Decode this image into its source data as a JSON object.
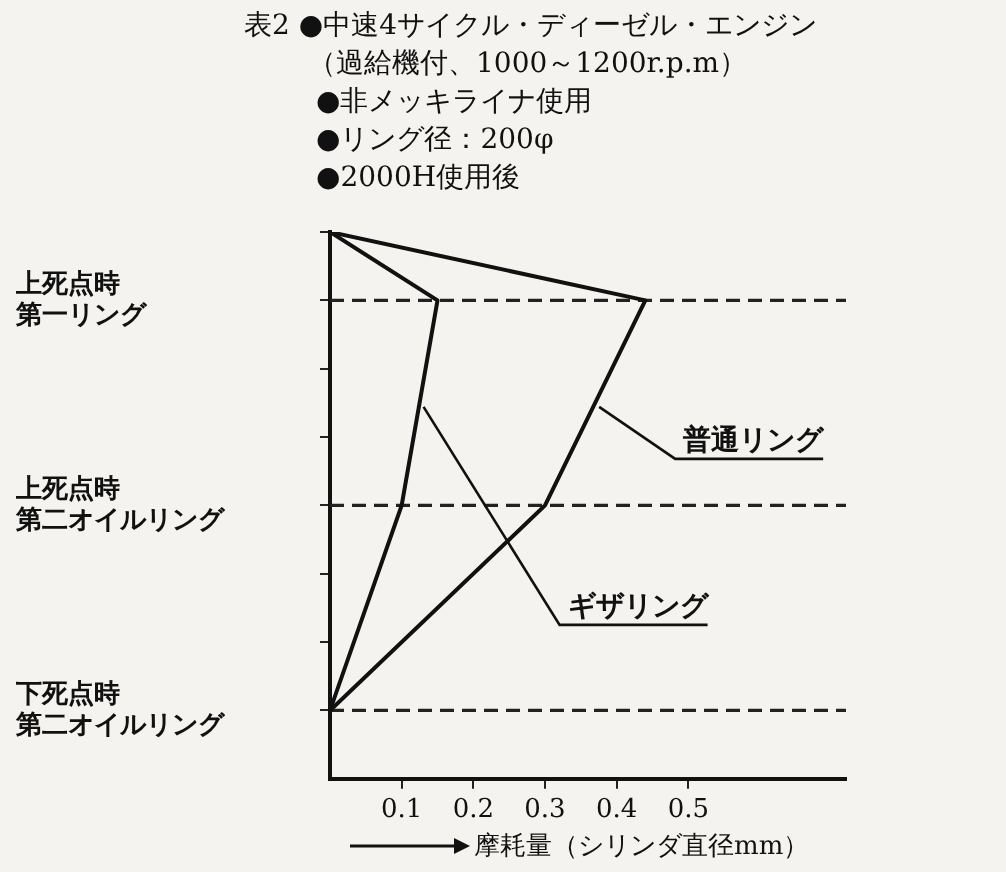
{
  "chart_data": {
    "type": "line",
    "orientation": "horizontal",
    "title": "表2 ●中速4サイクル・ディーゼル・エンジン",
    "subtitle": "（過給機付、1000～1200r.p.m）",
    "annotations": [
      "●非メッキライナ使用",
      "●リング径：200φ",
      "●2000H使用後"
    ],
    "xlabel": "摩耗量（シリンダ直径mm）",
    "xlim": [
      0,
      0.72
    ],
    "xticks": [
      0.1,
      0.2,
      0.3,
      0.4,
      0.5
    ],
    "categories": [
      null,
      "上死点時第一リング",
      null,
      null,
      "上死点時第二オイルリング",
      null,
      null,
      "下死点時第二オイルリング"
    ],
    "series": [
      {
        "name": "普通リング",
        "color": "#111111",
        "values": [
          0,
          0.44,
          null,
          null,
          0.3,
          null,
          null,
          0
        ]
      },
      {
        "name": "ギザリング",
        "color": "#111111",
        "values": [
          0,
          0.15,
          null,
          null,
          0.1,
          null,
          null,
          0
        ]
      }
    ],
    "ref_lines": [
      {
        "axis": "y",
        "value": "上死点時第一リング",
        "line_style": "dashed"
      },
      {
        "axis": "y",
        "value": "上死点時第二オイルリング",
        "line_style": "dashed"
      },
      {
        "axis": "y",
        "value": "下死点時第二オイルリング",
        "line_style": "dashed"
      }
    ],
    "grid": false,
    "legend": false,
    "marker": "none",
    "line_style": "solid"
  }
}
